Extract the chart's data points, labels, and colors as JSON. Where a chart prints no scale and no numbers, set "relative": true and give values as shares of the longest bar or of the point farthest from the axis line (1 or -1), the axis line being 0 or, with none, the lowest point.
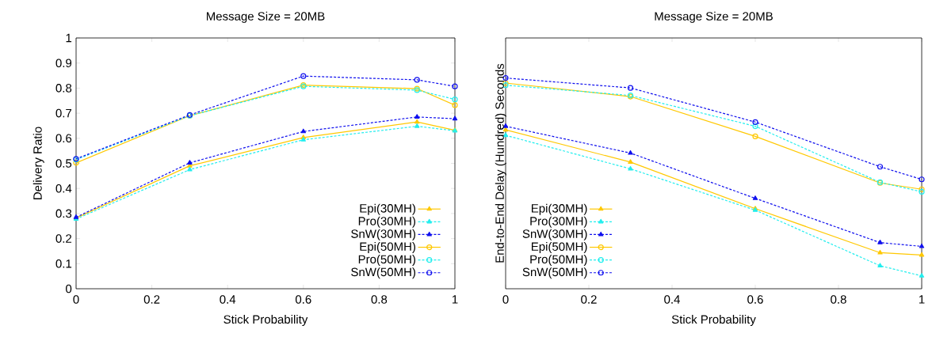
{
  "chart_data": [
    {
      "type": "line",
      "title": "Message Size = 20MB",
      "xlabel": "Stick Probability",
      "ylabel": "Delivery Ratio",
      "x": [
        0,
        0.3,
        0.6,
        0.9,
        1
      ],
      "xlim": [
        0,
        1
      ],
      "xticks": [
        0,
        0.2,
        0.4,
        0.6,
        0.8,
        1
      ],
      "ylim": [
        0,
        1
      ],
      "yticks": [
        0,
        0.1,
        0.2,
        0.3,
        0.4,
        0.5,
        0.6,
        0.7,
        0.8,
        0.9,
        1
      ],
      "legend": "bottom right",
      "series": [
        {
          "name": "Epi(30MH)",
          "color": "#ffc800",
          "marker": "triangle",
          "line_style": "solid",
          "values": [
            0.282,
            0.49,
            0.603,
            0.665,
            0.632
          ]
        },
        {
          "name": "Pro(30MH)",
          "color": "#22eeee",
          "marker": "triangle",
          "line_style": "dashed",
          "values": [
            0.278,
            0.475,
            0.594,
            0.648,
            0.63
          ]
        },
        {
          "name": "SnW(30MH)",
          "color": "#1010ee",
          "marker": "triangle",
          "line_style": "dashed",
          "values": [
            0.285,
            0.502,
            0.627,
            0.685,
            0.678
          ]
        },
        {
          "name": "Epi(50MH)",
          "color": "#ffc800",
          "marker": "circle",
          "line_style": "solid",
          "values": [
            0.502,
            0.69,
            0.812,
            0.798,
            0.732
          ]
        },
        {
          "name": "Pro(50MH)",
          "color": "#22eeee",
          "marker": "circle",
          "line_style": "dashed",
          "values": [
            0.515,
            0.69,
            0.807,
            0.792,
            0.755
          ]
        },
        {
          "name": "SnW(50MH)",
          "color": "#1010ee",
          "marker": "circle",
          "line_style": "dashed",
          "values": [
            0.518,
            0.693,
            0.848,
            0.833,
            0.807
          ]
        }
      ]
    },
    {
      "type": "line",
      "title": "Message Size = 20MB",
      "xlabel": "Stick Probability",
      "ylabel": "End-to-End Delay (Hundred) Seconds",
      "relative": true,
      "x": [
        0,
        0.3,
        0.6,
        0.9,
        1
      ],
      "xlim": [
        0,
        1
      ],
      "xticks": [
        0,
        0.2,
        0.4,
        0.6,
        0.8,
        1
      ],
      "legend": "bottom left",
      "series": [
        {
          "name": "Epi(30MH)",
          "color": "#ffc800",
          "marker": "triangle",
          "line_style": "solid",
          "values": [
            0.754,
            0.601,
            0.38,
            0.171,
            0.16
          ]
        },
        {
          "name": "Pro(30MH)",
          "color": "#22eeee",
          "marker": "triangle",
          "line_style": "dashed",
          "values": [
            0.728,
            0.569,
            0.373,
            0.109,
            0.061
          ]
        },
        {
          "name": "SnW(30MH)",
          "color": "#1010ee",
          "marker": "triangle",
          "line_style": "dashed",
          "values": [
            0.771,
            0.644,
            0.429,
            0.219,
            0.201
          ]
        },
        {
          "name": "Epi(50MH)",
          "color": "#ffc800",
          "marker": "circle",
          "line_style": "solid",
          "values": [
            0.976,
            0.912,
            0.723,
            0.502,
            0.472
          ]
        },
        {
          "name": "Pro(50MH)",
          "color": "#22eeee",
          "marker": "circle",
          "line_style": "dashed",
          "values": [
            0.966,
            0.917,
            0.771,
            0.505,
            0.46
          ]
        },
        {
          "name": "SnW(50MH)",
          "color": "#1010ee",
          "marker": "circle",
          "line_style": "dashed",
          "values": [
            1,
            0.953,
            0.791,
            0.579,
            0.519
          ]
        }
      ]
    }
  ]
}
